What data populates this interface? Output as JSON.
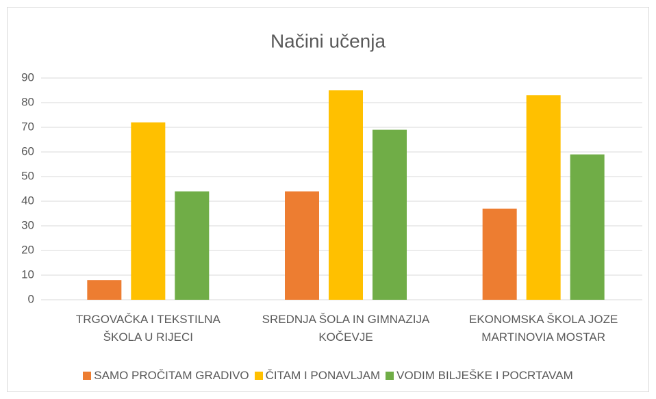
{
  "chart_data": {
    "type": "bar",
    "title": "Načini učenja",
    "categories": [
      "TRGOVAČKA I TEKSTILNA ŠKOLA U RIJECI",
      "SREDNJA ŠOLA IN GIMNAZIJA KOČEVJE",
      "EKONOMSKA ŠKOLA JOZE MARTINOVIA MOSTAR"
    ],
    "series": [
      {
        "name": "SAMO PROČITAM GRADIVO",
        "color": "#ED7D31",
        "values": [
          8,
          44,
          37
        ]
      },
      {
        "name": "ČITAM I PONAVLJAM",
        "color": "#FFC000",
        "values": [
          72,
          85,
          83
        ]
      },
      {
        "name": "VODIM BILJEŠKE I POCRTAVAM",
        "color": "#70AD47",
        "values": [
          44,
          69,
          59
        ]
      }
    ],
    "ylim": [
      0,
      90
    ],
    "yticks": [
      0,
      10,
      20,
      30,
      40,
      50,
      60,
      70,
      80,
      90
    ],
    "grid": true,
    "legend": "bottom"
  }
}
